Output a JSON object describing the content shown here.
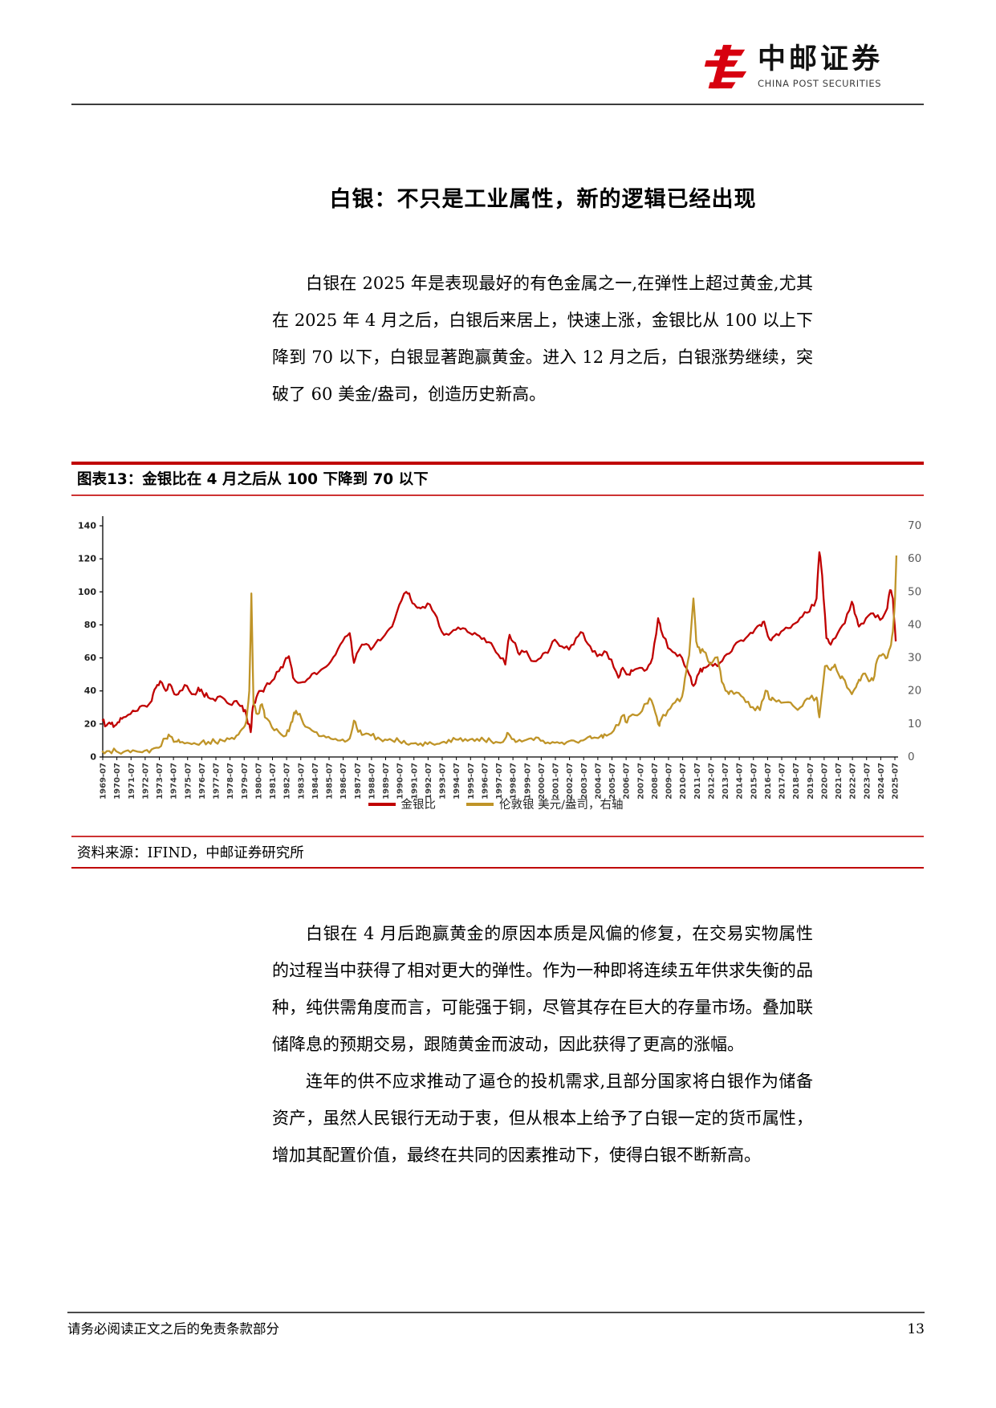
{
  "header": {
    "logo_cn": "中邮证券",
    "logo_en": "CHINA POST SECURITIES"
  },
  "section": {
    "title": "白银：不只是工业属性，新的逻辑已经出现"
  },
  "paragraphs": [
    "白银在 2025 年是表现最好的有色金属之一,在弹性上超过黄金,尤其在 2025 年 4 月之后，白银后来居上，快速上涨，金银比从 100 以上下降到 70 以下，白银显著跑赢黄金。进入 12 月之后，白银涨势继续，突破了 60 美金/盎司，创造历史新高。",
    "白银在 4 月后跑赢黄金的原因本质是风偏的修复，在交易实物属性的过程当中获得了相对更大的弹性。作为一种即将连续五年供求失衡的品种，纯供需角度而言，可能强于铜，尽管其存在巨大的存量市场。叠加联储降息的预期交易，跟随黄金而波动，因此获得了更高的涨幅。",
    "连年的供不应求推动了逼仓的投机需求,且部分国家将白银作为储备资产，虽然人民银行无动于衷，但从根本上给予了白银一定的货币属性，增加其配置价值，最终在共同的因素推动下，使得白银不断新高。"
  ],
  "figure": {
    "caption": "图表13：金银比在 4 月之后从 100 下降到 70 以下",
    "source": "资料来源：IFIND，中邮证券研究所"
  },
  "chart_data": {
    "type": "line",
    "title": "金银比在 4 月之后从 100 下降到 70 以下",
    "grid": false,
    "legend_position": "bottom-center",
    "left_axis": {
      "min": 0,
      "max": 140,
      "ticks": [
        0,
        20,
        40,
        60,
        80,
        100,
        120,
        140
      ]
    },
    "right_axis": {
      "min": 0,
      "max": 70,
      "ticks": [
        0,
        10,
        20,
        30,
        40,
        50,
        60,
        70
      ]
    },
    "x_tick_labels": [
      "1969-07",
      "1970-07",
      "1971-07",
      "1972-07",
      "1973-07",
      "1974-07",
      "1975-07",
      "1976-07",
      "1977-07",
      "1978-07",
      "1979-07",
      "1980-07",
      "1981-07",
      "1982-07",
      "1983-07",
      "1984-07",
      "1985-07",
      "1986-07",
      "1987-07",
      "1988-07",
      "1989-07",
      "1990-07",
      "1991-07",
      "1992-07",
      "1993-07",
      "1994-07",
      "1995-07",
      "1996-07",
      "1997-07",
      "1998-07",
      "1999-07",
      "2000-07",
      "2001-07",
      "2002-07",
      "2003-07",
      "2004-07",
      "2005-07",
      "2006-07",
      "2007-07",
      "2008-07",
      "2009-07",
      "2010-07",
      "2011-07",
      "2012-07",
      "2013-07",
      "2014-07",
      "2015-07",
      "2016-07",
      "2017-07",
      "2018-07",
      "2019-07",
      "2020-07",
      "2021-07",
      "2022-07",
      "2023-07",
      "2024-07",
      "2025-07"
    ],
    "legend": [
      {
        "name": "金银比",
        "color": "#C00000"
      },
      {
        "name": "伦敦银 美元/盎司，右轴",
        "color": "#BF9428"
      }
    ],
    "series": [
      {
        "name": "金银比",
        "axis": "left",
        "color": "#C00000",
        "jitter": 1.8,
        "x": [
          1969.5,
          1969.8,
          1970.1,
          1970.4,
          1970.7,
          1971.0,
          1971.5,
          1972.0,
          1972.5,
          1973.0,
          1973.3,
          1973.6,
          1974.0,
          1974.3,
          1974.6,
          1975.0,
          1975.5,
          1976.0,
          1976.3,
          1976.6,
          1977.0,
          1977.5,
          1978.0,
          1978.5,
          1979.0,
          1979.4,
          1979.7,
          1980.0,
          1980.15,
          1980.4,
          1980.7,
          1981.0,
          1981.5,
          1982.0,
          1982.4,
          1982.7,
          1983.0,
          1983.5,
          1984.0,
          1984.5,
          1985.0,
          1985.5,
          1986.0,
          1986.5,
          1987.0,
          1987.3,
          1987.6,
          1988.0,
          1988.5,
          1989.0,
          1989.5,
          1990.0,
          1990.5,
          1991.0,
          1991.3,
          1991.7,
          1992.0,
          1992.5,
          1993.0,
          1993.5,
          1994.0,
          1994.5,
          1995.0,
          1995.5,
          1996.0,
          1996.5,
          1997.0,
          1997.5,
          1998.0,
          1998.3,
          1998.7,
          1999.0,
          1999.5,
          2000.0,
          2000.5,
          2001.0,
          2001.5,
          2002.0,
          2002.5,
          2003.0,
          2003.5,
          2004.0,
          2004.5,
          2005.0,
          2005.5,
          2006.0,
          2006.3,
          2006.7,
          2007.0,
          2007.5,
          2008.0,
          2008.4,
          2008.8,
          2009.0,
          2009.5,
          2010.0,
          2010.5,
          2011.0,
          2011.3,
          2011.7,
          2012.0,
          2012.5,
          2013.0,
          2013.5,
          2014.0,
          2014.5,
          2015.0,
          2015.5,
          2016.0,
          2016.3,
          2016.7,
          2017.0,
          2017.5,
          2018.0,
          2018.5,
          2019.0,
          2019.5,
          2020.0,
          2020.2,
          2020.4,
          2020.7,
          2021.0,
          2021.5,
          2022.0,
          2022.5,
          2022.8,
          2023.0,
          2023.5,
          2024.0,
          2024.5,
          2025.0,
          2025.2,
          2025.4,
          2025.6
        ],
        "y": [
          22,
          19,
          20,
          19,
          21,
          24,
          26,
          28,
          31,
          34,
          42,
          46,
          40,
          44,
          38,
          40,
          43,
          38,
          42,
          39,
          36,
          34,
          36,
          32,
          34,
          31,
          25,
          15,
          30,
          36,
          40,
          42,
          46,
          52,
          58,
          61,
          48,
          45,
          47,
          51,
          53,
          56,
          62,
          70,
          75,
          57,
          64,
          68,
          65,
          71,
          74,
          79,
          92,
          100,
          96,
          91,
          90,
          93,
          87,
          76,
          74,
          77,
          78,
          75,
          74,
          72,
          69,
          62,
          56,
          74,
          69,
          62,
          64,
          58,
          60,
          63,
          71,
          67,
          65,
          72,
          75,
          67,
          61,
          64,
          59,
          48,
          54,
          50,
          52,
          54,
          53,
          60,
          84,
          77,
          66,
          63,
          60,
          50,
          43,
          51,
          54,
          57,
          55,
          61,
          64,
          70,
          72,
          75,
          80,
          82,
          71,
          73,
          76,
          78,
          81,
          85,
          88,
          96,
          124,
          110,
          72,
          68,
          75,
          81,
          94,
          85,
          79,
          84,
          87,
          83,
          90,
          101,
          96,
          70
        ]
      },
      {
        "name": "伦敦银 美元/盎司，右轴",
        "axis": "right",
        "color": "#BF9428",
        "jitter": 0.9,
        "x": [
          1969.5,
          1970.0,
          1970.5,
          1971.0,
          1971.5,
          1972.0,
          1972.5,
          1973.0,
          1973.5,
          1974.0,
          1974.3,
          1974.7,
          1975.0,
          1975.5,
          1976.0,
          1976.5,
          1977.0,
          1977.5,
          1978.0,
          1978.5,
          1979.0,
          1979.4,
          1979.7,
          1979.9,
          1980.05,
          1980.2,
          1980.5,
          1980.8,
          1981.0,
          1981.5,
          1982.0,
          1982.5,
          1982.8,
          1983.0,
          1983.2,
          1983.6,
          1984.0,
          1984.5,
          1985.0,
          1985.5,
          1986.0,
          1986.5,
          1987.0,
          1987.3,
          1987.6,
          1988.0,
          1988.5,
          1989.0,
          1989.5,
          1990.0,
          1990.5,
          1991.0,
          1991.5,
          1992.0,
          1992.5,
          1993.0,
          1993.5,
          1994.0,
          1994.5,
          1995.0,
          1995.5,
          1996.0,
          1996.5,
          1997.0,
          1997.5,
          1998.0,
          1998.2,
          1998.6,
          1999.0,
          1999.5,
          2000.0,
          2000.5,
          2001.0,
          2001.5,
          2002.0,
          2002.5,
          2003.0,
          2003.5,
          2004.0,
          2004.3,
          2004.7,
          2005.0,
          2005.5,
          2006.0,
          2006.3,
          2006.6,
          2007.0,
          2007.5,
          2008.0,
          2008.2,
          2008.6,
          2008.9,
          2009.0,
          2009.5,
          2010.0,
          2010.5,
          2010.8,
          2011.0,
          2011.3,
          2011.5,
          2011.8,
          2012.0,
          2012.5,
          2013.0,
          2013.3,
          2013.7,
          2014.0,
          2014.5,
          2015.0,
          2015.5,
          2016.0,
          2016.4,
          2016.8,
          2017.0,
          2017.5,
          2018.0,
          2018.5,
          2019.0,
          2019.5,
          2020.0,
          2020.2,
          2020.6,
          2021.0,
          2021.3,
          2021.7,
          2022.0,
          2022.5,
          2022.8,
          2023.0,
          2023.3,
          2023.7,
          2024.0,
          2024.3,
          2024.7,
          2025.0,
          2025.2,
          2025.4,
          2025.55,
          2025.65
        ],
        "y": [
          1.8,
          1.8,
          1.7,
          1.5,
          1.4,
          1.6,
          1.9,
          2.3,
          2.8,
          5.6,
          6.3,
          4.7,
          4.4,
          4.3,
          4.2,
          4.4,
          4.6,
          4.5,
          5.0,
          5.4,
          6.5,
          8.5,
          11,
          20,
          49.5,
          16,
          13,
          16,
          12,
          9,
          7.5,
          6.5,
          9.5,
          12,
          14,
          11.5,
          9,
          7.6,
          6.3,
          6.1,
          5.5,
          5.3,
          5.6,
          11,
          7.6,
          6.8,
          6.5,
          5.9,
          5.3,
          5.0,
          4.8,
          4.0,
          4.1,
          4.1,
          3.9,
          3.7,
          4.4,
          5.2,
          5.3,
          4.8,
          5.3,
          5.5,
          5.1,
          4.8,
          4.4,
          5.6,
          7.2,
          5.4,
          5.2,
          5.2,
          5.1,
          4.9,
          4.4,
          4.3,
          4.4,
          4.8,
          4.6,
          5.0,
          6.3,
          5.9,
          6.2,
          6.9,
          7.2,
          9.6,
          12.6,
          10.4,
          12.9,
          13.1,
          16.2,
          17.8,
          13.5,
          9.4,
          11.2,
          14.1,
          16.5,
          18.3,
          26,
          30.8,
          48,
          35,
          31.5,
          32,
          28,
          30.2,
          22.8,
          19.8,
          20,
          19.4,
          16.6,
          15.1,
          14.2,
          20.1,
          17.2,
          17.4,
          16.4,
          16.6,
          14.9,
          15.4,
          17.6,
          18,
          12,
          27.5,
          26.3,
          28,
          23.8,
          23.2,
          19,
          21.2,
          23.4,
          25.2,
          22.9,
          23.2,
          29.5,
          31.2,
          30.1,
          33,
          38,
          48,
          61
        ]
      }
    ]
  },
  "footer": {
    "disclaimer": "请务必阅读正文之后的免责条款部分",
    "page_number": "13"
  },
  "colors": {
    "accent_red": "#C00000",
    "ratio_line": "#C00000",
    "silver_line": "#BF9428",
    "right_axis_text": "#595959",
    "logo_red": "#D7000F"
  }
}
